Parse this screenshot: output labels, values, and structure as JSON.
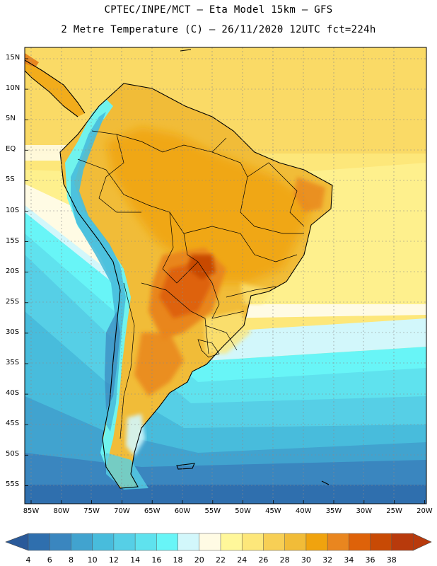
{
  "header": {
    "line1": "CPTEC/INPE/MCT –  Eta Model 15km – GFS",
    "line2": "2 Metre Temperature (C) – 26/11/2020 12UTC fct=224h"
  },
  "axes": {
    "lat_labels": [
      "15N",
      "10N",
      "5N",
      "EQ",
      "5S",
      "10S",
      "15S",
      "20S",
      "25S",
      "30S",
      "35S",
      "40S",
      "45S",
      "50S",
      "55S"
    ],
    "lon_labels": [
      "85W",
      "80W",
      "75W",
      "70W",
      "65W",
      "60W",
      "55W",
      "50W",
      "45W",
      "40W",
      "35W",
      "30W",
      "25W",
      "20W"
    ]
  },
  "colorbar": {
    "labels": [
      "4",
      "6",
      "8",
      "10",
      "12",
      "14",
      "16",
      "18",
      "20",
      "22",
      "24",
      "26",
      "28",
      "30",
      "32",
      "34",
      "36",
      "38"
    ],
    "colors": [
      "#2f6fae",
      "#3a86bf",
      "#41a3cf",
      "#48bcdc",
      "#56cfe6",
      "#5fe2ee",
      "#68f5f7",
      "#d2f7fb",
      "#fffbe4",
      "#fff79a",
      "#fde77a",
      "#f7cf55",
      "#f1bc38",
      "#f0a30e",
      "#e9861f",
      "#de6209",
      "#c84a05",
      "#b83a0c"
    ]
  },
  "chart_data": {
    "type": "heatmap",
    "title": "2 Metre Temperature (C) – 26/11/2020 12UTC fct=224h",
    "model": "Eta Model 15km – GFS",
    "variable_units": "C",
    "lat_range": [
      -58,
      17
    ],
    "lon_range": [
      -86,
      -20
    ],
    "color_scale_min": 4,
    "color_scale_max": 38,
    "color_scale_step": 2
  }
}
